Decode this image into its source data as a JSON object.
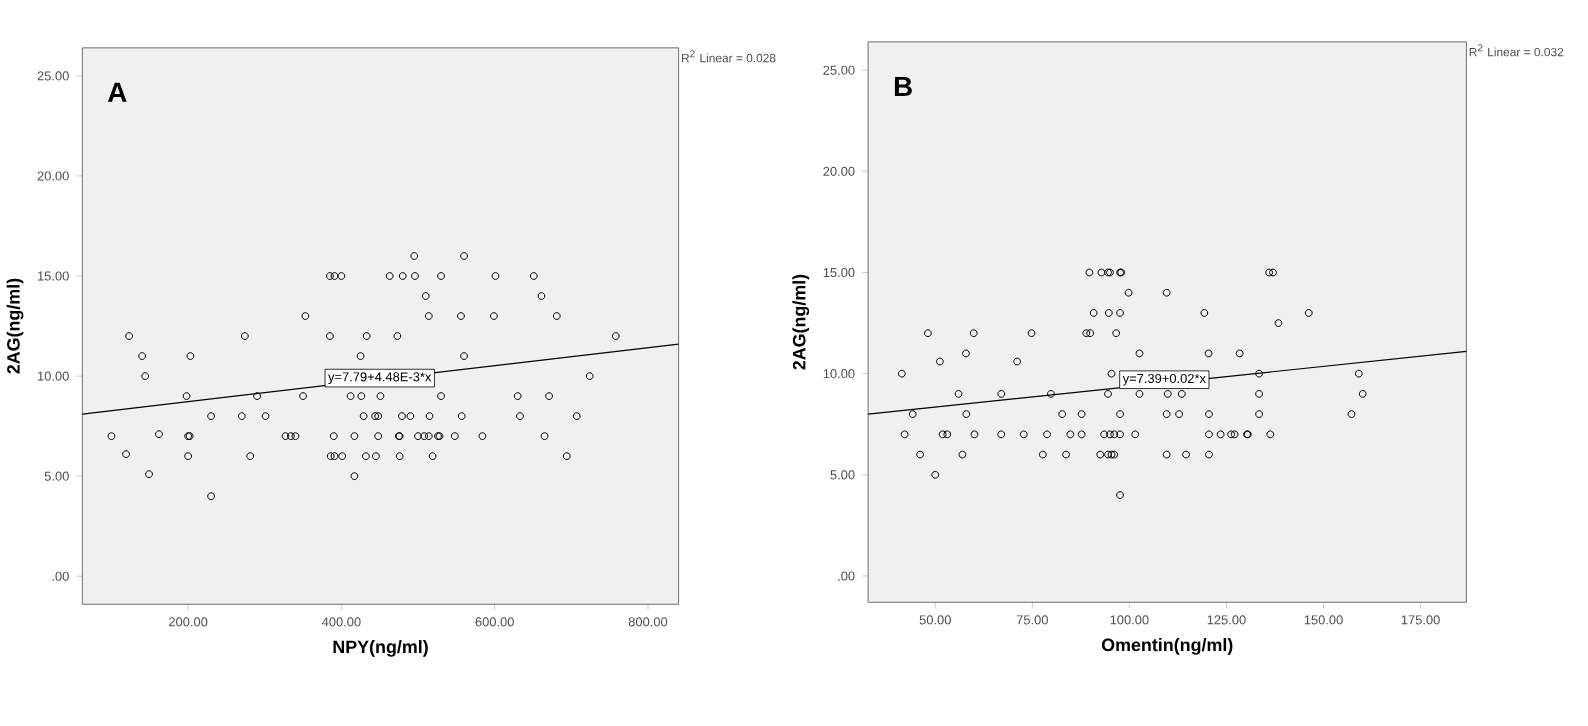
{
  "chart_data": [
    {
      "type": "scatter",
      "title": "A",
      "xlabel": "NPY(ng/ml)",
      "ylabel": "2AG(ng/ml)",
      "xlim": [
        62,
        840
      ],
      "ylim": [
        -1.4,
        26.4
      ],
      "xticks": [
        {
          "value": 200,
          "label": "200.00"
        },
        {
          "value": 400,
          "label": "400.00"
        },
        {
          "value": 600,
          "label": "600.00"
        },
        {
          "value": 800,
          "label": "800.00"
        }
      ],
      "yticks": [
        {
          "value": 0,
          "label": ".00"
        },
        {
          "value": 5,
          "label": "5.00"
        },
        {
          "value": 10,
          "label": "10.00"
        },
        {
          "value": 15,
          "label": "15.00"
        },
        {
          "value": 20,
          "label": "20.00"
        },
        {
          "value": 25,
          "label": "25.00"
        }
      ],
      "series": [
        {
          "marker": "circle",
          "color": "#000000",
          "x": [
            495,
            560,
            385,
            391,
            400,
            463,
            480,
            496,
            530,
            601,
            651,
            510,
            661,
            353,
            514,
            556,
            599,
            681,
            123,
            274,
            385,
            433,
            473,
            758,
            140,
            203,
            425,
            560,
            144,
            724,
            198,
            290,
            350,
            412,
            426,
            451,
            530,
            630,
            671,
            230,
            270,
            301,
            429,
            444,
            448,
            479,
            490,
            515,
            557,
            633,
            707,
            100,
            162,
            200,
            202,
            327,
            334,
            340,
            390,
            417,
            448,
            475,
            476,
            500,
            508,
            514,
            526,
            528,
            548,
            584,
            665,
            119,
            200,
            281,
            386,
            391,
            401,
            432,
            445,
            476,
            519,
            694,
            149,
            417,
            230
          ],
          "values": [
            16,
            16,
            15,
            15,
            15,
            15,
            15,
            15,
            15,
            15,
            15,
            14,
            14,
            13,
            13,
            13,
            13,
            13,
            12,
            12,
            12,
            12,
            12,
            12,
            11,
            11,
            11,
            11,
            10,
            10,
            9,
            9,
            9,
            9,
            9,
            9,
            9,
            9,
            9,
            8,
            8,
            8,
            8,
            8,
            8,
            8,
            8,
            8,
            8,
            8,
            8,
            7,
            7.1,
            7,
            7,
            7,
            7,
            7,
            7,
            7,
            7,
            7,
            7,
            7,
            7,
            7,
            7,
            7,
            7,
            7,
            7,
            6.1,
            6,
            6,
            6,
            6,
            6,
            6,
            6,
            6,
            6,
            6,
            5.1,
            5,
            4
          ]
        },
        {
          "type": "line",
          "marker": "none",
          "color": "#000000",
          "x": [
            62,
            840
          ],
          "values": [
            8.1,
            11.6
          ]
        }
      ],
      "annotations": [
        "R$^{2}$ Linear = 0.028",
        {
          "text": "y=7.79+4.48E-3*x",
          "x": 450,
          "y": 9.9
        }
      ]
    },
    {
      "type": "scatter",
      "title": "B",
      "xlabel": "Omentin(ng/ml)",
      "ylabel": "2AG(ng/ml)",
      "xlim": [
        32.7,
        186.8
      ],
      "ylim": [
        -1.3,
        26.4
      ],
      "xticks": [
        {
          "value": 50,
          "label": "50.00"
        },
        {
          "value": 75,
          "label": "75.00"
        },
        {
          "value": 100,
          "label": "100.00"
        },
        {
          "value": 125,
          "label": "125.00"
        },
        {
          "value": 150,
          "label": "150.00"
        },
        {
          "value": 175,
          "label": "175.00"
        }
      ],
      "yticks": [
        {
          "value": 0,
          "label": ".00"
        },
        {
          "value": 5,
          "label": "5.00"
        },
        {
          "value": 10,
          "label": "10.00"
        },
        {
          "value": 15,
          "label": "15.00"
        },
        {
          "value": 20,
          "label": "20.00"
        },
        {
          "value": 25,
          "label": "25.00"
        }
      ],
      "series": [
        {
          "marker": "circle",
          "color": "#000000",
          "x": [
            89.7,
            92.8,
            94.5,
            95,
            97.6,
            97.9,
            136,
            137,
            99.8,
            109.6,
            90.8,
            94.7,
            97.6,
            119.3,
            146.2,
            138.4,
            48.1,
            59.9,
            74.8,
            88.9,
            89.9,
            96.6,
            57.9,
            102.6,
            120.4,
            128.4,
            51.2,
            71.1,
            41.4,
            95.4,
            133.4,
            159.1,
            56,
            67,
            79.8,
            94.5,
            102.6,
            109.9,
            113.5,
            133.4,
            160.1,
            44.2,
            58,
            82.7,
            87.7,
            97.6,
            109.6,
            112.8,
            120.5,
            133.4,
            157.2,
            42.1,
            51.9,
            53.1,
            60.1,
            67,
            72.8,
            78.8,
            84.8,
            87.7,
            93.5,
            95,
            96.1,
            97.6,
            101.5,
            120.5,
            123.5,
            126.2,
            127.1,
            130.3,
            130.5,
            136.3,
            46.1,
            57,
            77.7,
            83.7,
            92.5,
            94.5,
            95.4,
            96.1,
            109.6,
            114.6,
            120.5,
            50,
            97.6
          ],
          "values": [
            15,
            15,
            15,
            15,
            15,
            15,
            15,
            15,
            14,
            14,
            13,
            13,
            13,
            13,
            13,
            12.5,
            12,
            12,
            12,
            12,
            12,
            12,
            11,
            11,
            11,
            11,
            10.6,
            10.6,
            10,
            10,
            10,
            10,
            9,
            9,
            9,
            9,
            9,
            9,
            9,
            9,
            9,
            8,
            8,
            8,
            8,
            8,
            8,
            8,
            8,
            8,
            8,
            7,
            7,
            7,
            7,
            7,
            7,
            7,
            7,
            7,
            7,
            7,
            7,
            7,
            7,
            7,
            7,
            7,
            7,
            7,
            7,
            7,
            6,
            6,
            6,
            6,
            6,
            6,
            6,
            6,
            6,
            6,
            6,
            5,
            4
          ]
        },
        {
          "type": "line",
          "marker": "none",
          "color": "#000000",
          "x": [
            32.7,
            186.8
          ],
          "values": [
            8.0,
            11.1
          ]
        }
      ],
      "annotations": [
        "R$^{2}$ Linear = 0.032",
        {
          "text": "y=7.39+0.02*x",
          "x": 109,
          "y": 9.7
        }
      ]
    }
  ]
}
